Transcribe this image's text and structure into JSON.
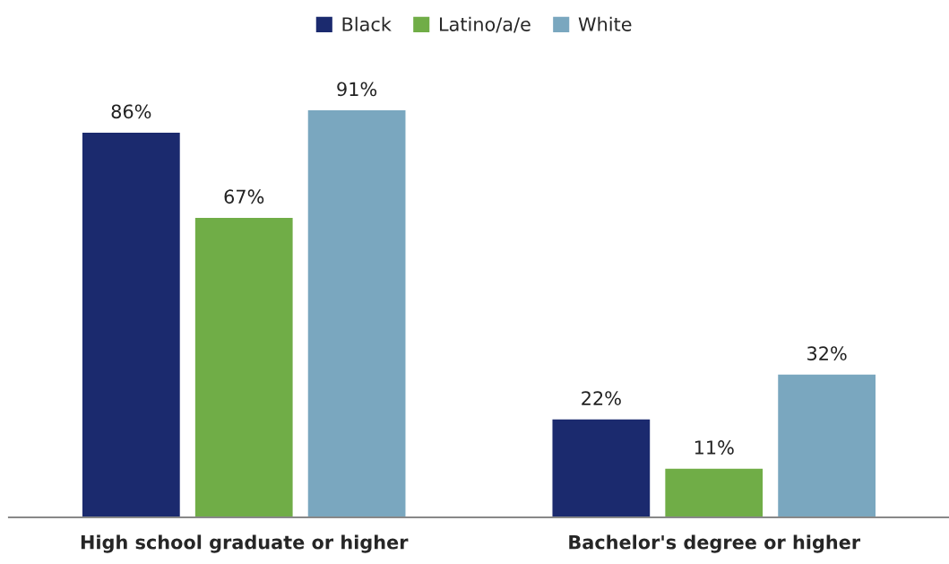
{
  "chart_data": {
    "type": "bar",
    "categories": [
      "High school graduate or higher",
      "Bachelor's degree or higher"
    ],
    "series": [
      {
        "name": "Black",
        "color": "#1b2a6e",
        "values": [
          86,
          22
        ],
        "value_labels": [
          "86%",
          "22%"
        ]
      },
      {
        "name": "Latino/a/e",
        "color": "#70ad47",
        "values": [
          67,
          11
        ],
        "value_labels": [
          "67%",
          "11%"
        ]
      },
      {
        "name": "White",
        "color": "#7aa7bf",
        "values": [
          91,
          32
        ],
        "value_labels": [
          "91%",
          "32%"
        ]
      }
    ],
    "legend": "top",
    "grid": false
  }
}
